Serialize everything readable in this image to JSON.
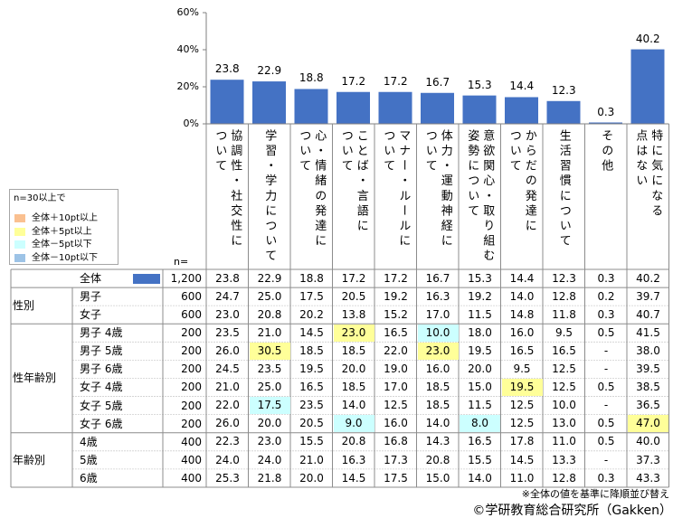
{
  "chart_data": {
    "type": "bar",
    "categories": [
      "協調性・社交性に\nついて",
      "学習・学力について",
      "心・情緒の発達に\nついて",
      "ことば・言語に\nついて",
      "マナー・ルールに\nついて",
      "体力・運動神経に\nついて",
      "意欲関心・取り組む\n姿勢について",
      "からだの発達に\nついて",
      "生活習慣について",
      "その他",
      "特に気になる\n点はない"
    ],
    "values": [
      23.8,
      22.9,
      18.8,
      17.2,
      17.2,
      16.7,
      15.3,
      14.4,
      12.3,
      0.3,
      40.2
    ],
    "ylim": [
      0,
      60
    ],
    "yticks": [
      0,
      20,
      40,
      60
    ],
    "ytick_labels": [
      "0%",
      "20%",
      "40%",
      "60%"
    ],
    "bar_color": "#4472C4",
    "grid": false
  },
  "legend": {
    "title": "n=30以上で",
    "items": [
      {
        "label": "全体＋10pt以上",
        "color": "#FAC090"
      },
      {
        "label": "全体＋5pt以上",
        "color": "#FFFF99"
      },
      {
        "label": "全体－5pt以下",
        "color": "#CCFFFF"
      },
      {
        "label": "全体－10pt以下",
        "color": "#9DC3E6"
      }
    ]
  },
  "table": {
    "n_header": "n=",
    "total_marker_color": "#4472C4",
    "total": {
      "label": "全体",
      "n": "1,200",
      "values": [
        "23.8",
        "22.9",
        "18.8",
        "17.2",
        "17.2",
        "16.7",
        "15.3",
        "14.4",
        "12.3",
        "0.3",
        "40.2"
      ]
    },
    "groups": [
      {
        "label": "性別",
        "rows": [
          {
            "label": "男子",
            "n": "600",
            "values": [
              "24.7",
              "25.0",
              "17.5",
              "20.5",
              "19.2",
              "16.3",
              "19.2",
              "14.0",
              "12.8",
              "0.2",
              "39.7"
            ]
          },
          {
            "label": "女子",
            "n": "600",
            "values": [
              "23.0",
              "20.8",
              "20.2",
              "13.8",
              "15.2",
              "17.0",
              "11.5",
              "14.8",
              "11.8",
              "0.3",
              "40.7"
            ]
          }
        ]
      },
      {
        "label": "性年齢別",
        "rows": [
          {
            "label": "男子 4歳",
            "n": "200",
            "values": [
              "23.5",
              "21.0",
              "14.5",
              "23.0",
              "16.5",
              "10.0",
              "18.0",
              "16.0",
              "9.5",
              "0.5",
              "41.5"
            ]
          },
          {
            "label": "男子 5歳",
            "n": "200",
            "values": [
              "26.0",
              "30.5",
              "18.5",
              "18.5",
              "22.0",
              "23.0",
              "19.5",
              "16.5",
              "16.5",
              "-",
              "38.0"
            ]
          },
          {
            "label": "男子 6歳",
            "n": "200",
            "values": [
              "24.5",
              "23.5",
              "19.5",
              "20.0",
              "19.0",
              "16.0",
              "20.0",
              "9.5",
              "12.5",
              "-",
              "39.5"
            ]
          },
          {
            "label": "女子 4歳",
            "n": "200",
            "values": [
              "21.0",
              "25.0",
              "16.5",
              "18.5",
              "17.0",
              "18.5",
              "15.0",
              "19.5",
              "12.5",
              "0.5",
              "38.5"
            ]
          },
          {
            "label": "女子 5歳",
            "n": "200",
            "values": [
              "22.0",
              "17.5",
              "23.5",
              "14.0",
              "12.5",
              "18.5",
              "11.5",
              "12.5",
              "10.0",
              "-",
              "36.5"
            ]
          },
          {
            "label": "女子 6歳",
            "n": "200",
            "values": [
              "26.0",
              "20.0",
              "20.5",
              "9.0",
              "16.0",
              "14.0",
              "8.0",
              "12.5",
              "13.0",
              "0.5",
              "47.0"
            ]
          }
        ]
      },
      {
        "label": "年齢別",
        "rows": [
          {
            "label": "4歳",
            "n": "400",
            "values": [
              "22.3",
              "23.0",
              "15.5",
              "20.8",
              "16.8",
              "14.3",
              "16.5",
              "17.8",
              "11.0",
              "0.5",
              "40.0"
            ]
          },
          {
            "label": "5歳",
            "n": "400",
            "values": [
              "24.0",
              "24.0",
              "21.0",
              "16.3",
              "17.3",
              "20.8",
              "15.5",
              "14.5",
              "13.3",
              "-",
              "37.3"
            ]
          },
          {
            "label": "6歳",
            "n": "400",
            "values": [
              "25.3",
              "21.8",
              "20.0",
              "14.5",
              "17.5",
              "15.0",
              "14.0",
              "11.0",
              "12.8",
              "0.3",
              "43.3"
            ]
          }
        ]
      }
    ]
  },
  "footnote": "※全体の値を基準に降順並び替え",
  "copyright": "©学研教育総合研究所（Gakken）"
}
